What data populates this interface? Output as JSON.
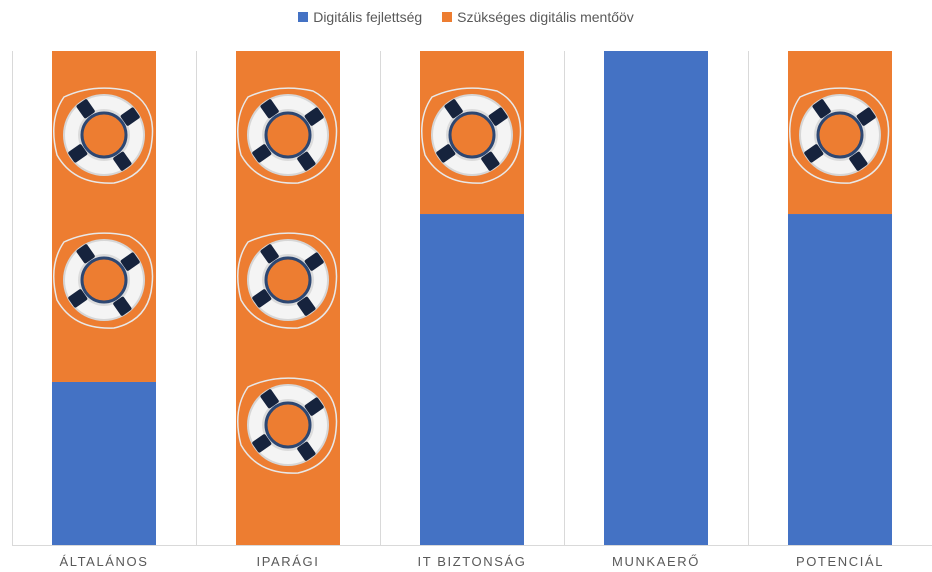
{
  "chart_data": {
    "type": "bar",
    "stacked": true,
    "title": "",
    "xlabel": "",
    "ylabel": "",
    "categories": [
      "ÁLTALÁNOS",
      "IPARÁGI",
      "IT BIZTONSÁG",
      "MUNKAERŐ",
      "POTENCIÁL"
    ],
    "series": [
      {
        "name": "Digitális fejlettség",
        "color": "#4472c4",
        "values": [
          33,
          0,
          67,
          100,
          67
        ]
      },
      {
        "name": "Szükséges digitális mentőöv",
        "color": "#ed7d31",
        "values": [
          67,
          100,
          33,
          0,
          33
        ]
      }
    ],
    "lifebuoys_per_category": [
      2,
      3,
      1,
      0,
      1
    ],
    "ylim": [
      0,
      100
    ],
    "legend": "top-center",
    "grid": "vertical separators"
  }
}
